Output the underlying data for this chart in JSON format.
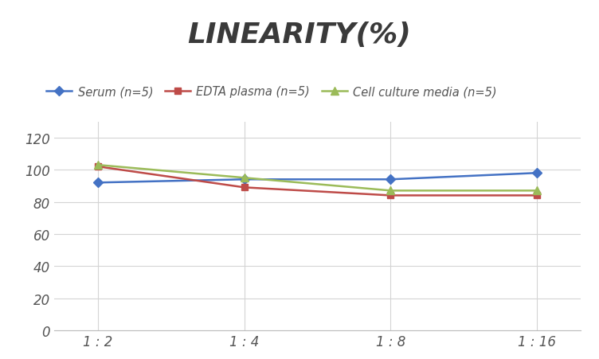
{
  "title": "LINEARITY(%)",
  "title_fontsize": 26,
  "title_fontstyle": "italic",
  "title_fontweight": "bold",
  "title_color": "#3a3a3a",
  "x_labels": [
    "1 : 2",
    "1 : 4",
    "1 : 8",
    "1 : 16"
  ],
  "series": [
    {
      "label": "Serum (n=5)",
      "values": [
        92,
        94,
        94,
        98
      ],
      "color": "#4472C4",
      "marker": "D",
      "marker_size": 6,
      "linewidth": 1.8
    },
    {
      "label": "EDTA plasma (n=5)",
      "values": [
        102,
        89,
        84,
        84
      ],
      "color": "#BE4B48",
      "marker": "s",
      "marker_size": 6,
      "linewidth": 1.8
    },
    {
      "label": "Cell culture media (n=5)",
      "values": [
        103,
        95,
        87,
        87
      ],
      "color": "#9BBB59",
      "marker": "^",
      "marker_size": 7,
      "linewidth": 1.8
    }
  ],
  "ylim": [
    0,
    130
  ],
  "yticks": [
    0,
    20,
    40,
    60,
    80,
    100,
    120
  ],
  "background_color": "#ffffff",
  "grid_color": "#d4d4d4",
  "legend_fontsize": 10.5,
  "axis_tick_fontsize": 12,
  "axis_tick_color": "#555555"
}
